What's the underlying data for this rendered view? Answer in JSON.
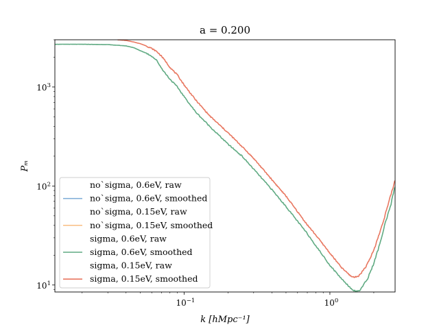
{
  "chart_data": {
    "type": "line",
    "title": "a = 0.200",
    "xlabel": "k [hMpc⁻¹]",
    "ylabel": "Pₘ",
    "xscale": "log",
    "yscale": "log",
    "xlim": [
      0.013,
      2.8
    ],
    "ylim": [
      8.5,
      3000
    ],
    "grid": false,
    "legend_position": "lower-left",
    "x_ticks": [
      {
        "value": 0.1,
        "base": "10",
        "exp": "−1"
      },
      {
        "value": 1,
        "base": "10",
        "exp": "0"
      }
    ],
    "y_ticks": [
      {
        "value": 10,
        "base": "10",
        "exp": "1"
      },
      {
        "value": 100,
        "base": "10",
        "exp": "2"
      },
      {
        "value": 1000,
        "base": "10",
        "exp": "3"
      }
    ],
    "series": [
      {
        "name": "no`sigma, 0.6eV, raw",
        "color": "#1f77b4",
        "alpha": 0.0,
        "linewidth": 1.5,
        "x": [],
        "y": []
      },
      {
        "name": "no`sigma, 0.6eV, smoothed",
        "color": "#7aaad5",
        "alpha": 1.0,
        "linewidth": 1.5,
        "x": [],
        "y": []
      },
      {
        "name": "no`sigma, 0.15eV, raw",
        "color": "#ff7f0e",
        "alpha": 0.0,
        "linewidth": 1.5,
        "x": [],
        "y": []
      },
      {
        "name": "no`sigma, 0.15eV, smoothed",
        "color": "#f8bd82",
        "alpha": 1.0,
        "linewidth": 1.5,
        "x": [],
        "y": []
      },
      {
        "name": "sigma, 0.6eV, raw",
        "color": "#2ca02c",
        "alpha": 0.0,
        "linewidth": 1.5,
        "x": [],
        "y": []
      },
      {
        "name": "sigma, 0.6eV, smoothed",
        "color": "#5faa82",
        "alpha": 1.0,
        "linewidth": 1.6,
        "x": [
          0.013,
          0.02,
          0.03,
          0.04,
          0.045,
          0.05,
          0.055,
          0.06,
          0.065,
          0.07,
          0.075,
          0.08,
          0.09,
          0.1,
          0.12,
          0.15,
          0.2,
          0.25,
          0.3,
          0.4,
          0.5,
          0.6,
          0.7,
          0.8,
          1.0,
          1.2,
          1.4,
          1.5,
          1.6,
          1.8,
          2.0,
          2.2,
          2.4,
          2.6,
          2.8
        ],
        "y": [
          2700,
          2700,
          2680,
          2600,
          2500,
          2330,
          2200,
          2050,
          1850,
          1550,
          1350,
          1200,
          1000,
          800,
          560,
          400,
          265,
          200,
          148,
          92,
          62,
          44,
          33,
          25,
          15.8,
          11.6,
          9.2,
          8.6,
          8.8,
          11.3,
          16.5,
          26,
          42,
          62,
          100
        ]
      },
      {
        "name": "sigma, 0.15eV, raw",
        "color": "#d62728",
        "alpha": 0.0,
        "linewidth": 1.5,
        "x": [],
        "y": []
      },
      {
        "name": "sigma, 0.15eV, smoothed",
        "color": "#e8765f",
        "alpha": 1.0,
        "linewidth": 1.6,
        "x": [
          0.035,
          0.04,
          0.045,
          0.05,
          0.055,
          0.06,
          0.065,
          0.07,
          0.075,
          0.08,
          0.09,
          0.1,
          0.12,
          0.15,
          0.2,
          0.25,
          0.3,
          0.4,
          0.5,
          0.6,
          0.7,
          0.8,
          1.0,
          1.2,
          1.4,
          1.5,
          1.6,
          1.8,
          2.0,
          2.2,
          2.4,
          2.6,
          2.8
        ],
        "y": [
          3000,
          2950,
          2850,
          2740,
          2600,
          2450,
          2280,
          2050,
          1800,
          1580,
          1320,
          1050,
          740,
          510,
          345,
          250,
          190,
          116,
          79,
          55,
          40.5,
          32,
          21,
          15,
          12.2,
          12,
          12.6,
          16,
          22.5,
          34,
          52,
          78,
          115
        ]
      }
    ]
  }
}
